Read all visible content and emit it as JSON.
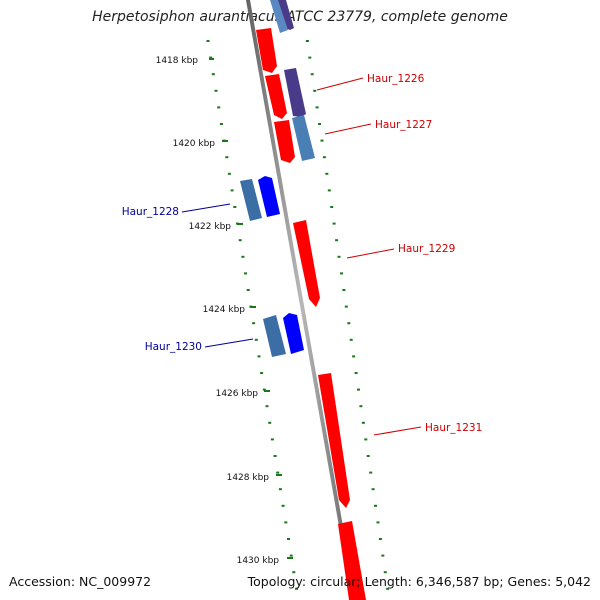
{
  "title": "Herpetosiphon aurantiacus ATCC 23779, complete genome",
  "footer": {
    "accession": "Accession: NC_009972",
    "topology": "Topology: circular; Length: 6,346,587 bp; Genes: 5,042"
  },
  "colors": {
    "forward_cds": "#ff0000",
    "forward_gene": "#4a3a8a",
    "reverse_cds": "#0000ff",
    "reverse_gene": "#3a6ea5",
    "backbone": "#808080",
    "tick_marks": "#1a7a1a",
    "forward_label": "#cc0000",
    "reverse_label": "#000099"
  },
  "ticks": [
    "1418 kbp",
    "1420 kbp",
    "1422 kbp",
    "1424 kbp",
    "1426 kbp",
    "1428 kbp",
    "1430 kbp"
  ],
  "genes": [
    {
      "label": "Haur_1226",
      "strand": "forward"
    },
    {
      "label": "Haur_1227",
      "strand": "forward"
    },
    {
      "label": "Haur_1228",
      "strand": "reverse"
    },
    {
      "label": "Haur_1229",
      "strand": "forward"
    },
    {
      "label": "Haur_1230",
      "strand": "reverse"
    },
    {
      "label": "Haur_1231",
      "strand": "forward"
    }
  ]
}
